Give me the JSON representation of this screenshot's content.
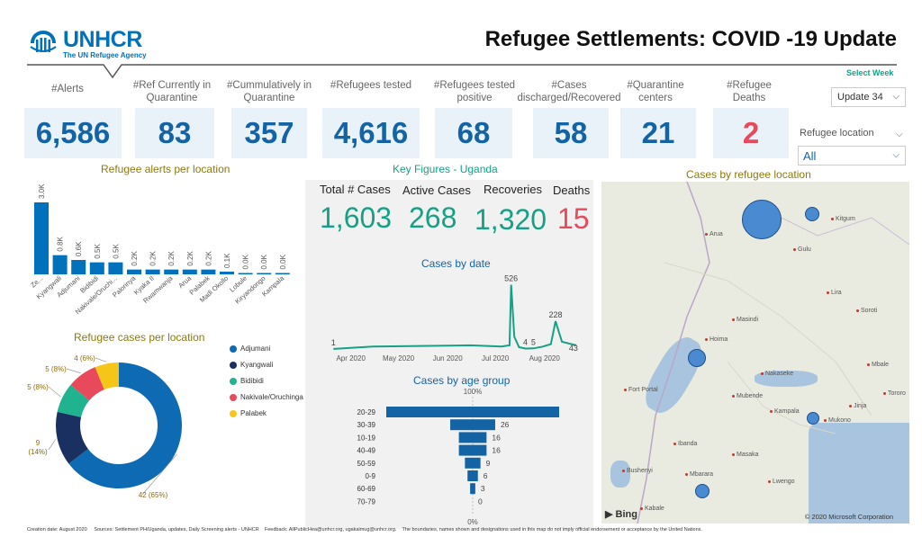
{
  "header": {
    "logo_name": "UNHCR",
    "logo_sub": "The UN Refugee Agency",
    "title": "Refugee Settlements: COVID -19 Update",
    "select_week_label": "Select Week"
  },
  "filters": {
    "week_value": "Update 34",
    "location_label": "Refugee location",
    "location_value": "All"
  },
  "kpis": [
    {
      "label": "#Alerts",
      "value": "6,586"
    },
    {
      "label": "#Ref Currently in Quarantine",
      "value": "83"
    },
    {
      "label": "#Cummulatively in Quarantine",
      "value": "357"
    },
    {
      "label": "#Refugees tested",
      "value": "4,616"
    },
    {
      "label": "#Refugees tested positive",
      "value": "68"
    },
    {
      "label": "#Cases discharged/Recovered",
      "value": "58"
    },
    {
      "label": "#Quarantine centers",
      "value": "21"
    },
    {
      "label": "#Refugee Deaths",
      "value": "2"
    }
  ],
  "sections": {
    "alerts_title": "Refugee alerts per location",
    "key_figures_title": "Key Figures - Uganda",
    "map_title": "Cases by refugee location",
    "cases_per_location_title": "Refugee cases per location",
    "cases_by_date_title": "Cases by date",
    "age_title": "Cases by age group"
  },
  "key_figures": {
    "total_label": "Total # Cases",
    "total_value": "1,603",
    "active_label": "Active Cases",
    "active_value": "268",
    "recoveries_label": "Recoveries",
    "recoveries_value": "1,320",
    "deaths_label": "Deaths",
    "deaths_value": "15"
  },
  "map": {
    "bing": "Bing",
    "copyright": "© 2020 Microsoft Corporation",
    "places": [
      "Arua",
      "Gulu",
      "Kitgum",
      "Lira",
      "Hoima",
      "Fort Portal",
      "Mubende",
      "Kampala",
      "Mukono",
      "Jinja",
      "Masaka",
      "Mbarara",
      "Kabale",
      "Ibanda",
      "Bushenyi",
      "Soroti",
      "Mbale",
      "Tororo",
      "Masindi",
      "Lwengo",
      "Nakaseke"
    ]
  },
  "chart_data": [
    {
      "type": "bar",
      "title": "Refugee alerts per location",
      "categories": [
        "Ze...",
        "Kyangwali",
        "Adjumani",
        "Bidibidi",
        "Nakivale/Oruchi...",
        "Palorinya",
        "Kyaka II",
        "Rwamwanja",
        "Arua",
        "Palabek",
        "Madi Okollo",
        "Lobule",
        "Kiryandongo",
        "Kampala"
      ],
      "values": [
        3.0,
        0.8,
        0.6,
        0.5,
        0.5,
        0.2,
        0.2,
        0.2,
        0.2,
        0.2,
        0.1,
        0.0,
        0.0,
        0.0
      ],
      "value_labels": [
        "3.0K",
        "0.8K",
        "0.6K",
        "0.5K",
        "0.5K",
        "0.2K",
        "0.2K",
        "0.2K",
        "0.2K",
        "0.2K",
        "0.1K",
        "0.0K",
        "0.0K",
        "0.0K"
      ],
      "color": "#0072bc"
    },
    {
      "type": "pie",
      "title": "Refugee cases per location",
      "slices": [
        {
          "name": "Adjumani",
          "value": 42,
          "label": "42 (65%)",
          "color": "#0e6bb3"
        },
        {
          "name": "Kyangwali",
          "value": 9,
          "label": "9 (14%)",
          "color": "#1a3060"
        },
        {
          "name": "Bidibidi",
          "value": 5,
          "label": "5 (8%)",
          "color": "#1fb38f"
        },
        {
          "name": "Nakivale/Oruchinga",
          "value": 5,
          "label": "5 (8%)",
          "color": "#e8495b"
        },
        {
          "name": "Palabek",
          "value": 4,
          "label": "4 (6%)",
          "color": "#f5c518"
        }
      ]
    },
    {
      "type": "line",
      "title": "Cases by date",
      "x_ticks": [
        "Apr 2020",
        "May 2020",
        "Jun 2020",
        "Jul 2020",
        "Aug 2020"
      ],
      "x": [
        "2020-03-21",
        "2020-04-15",
        "2020-05-15",
        "2020-06-15",
        "2020-07-05",
        "2020-07-10",
        "2020-07-11",
        "2020-07-13",
        "2020-07-16",
        "2020-07-20",
        "2020-07-25",
        "2020-07-31",
        "2020-08-05",
        "2020-08-08",
        "2020-08-12",
        "2020-08-17",
        "2020-08-21"
      ],
      "values": [
        1,
        20,
        25,
        30,
        20,
        30,
        526,
        100,
        15,
        4,
        5,
        20,
        40,
        228,
        60,
        43,
        30
      ],
      "point_labels": [
        {
          "x": "2020-03-21",
          "label": "1"
        },
        {
          "x": "2020-07-11",
          "label": "526"
        },
        {
          "x": "2020-07-20",
          "label": "4"
        },
        {
          "x": "2020-07-25",
          "label": "5"
        },
        {
          "x": "2020-08-08",
          "label": "228"
        },
        {
          "x": "2020-08-17",
          "label": "43"
        }
      ],
      "color": "#16a085"
    },
    {
      "type": "bar",
      "orientation": "horizontal-funnel",
      "title": "Cases by age group",
      "categories": [
        "20-29",
        "30-39",
        "10-19",
        "40-49",
        "50-59",
        "0-9",
        "60-69",
        "70-79"
      ],
      "values": [
        100,
        26,
        16,
        16,
        9,
        6,
        3,
        0
      ],
      "top_label": "100%",
      "bottom_label": "0%",
      "color": "#1464a5"
    }
  ]
}
